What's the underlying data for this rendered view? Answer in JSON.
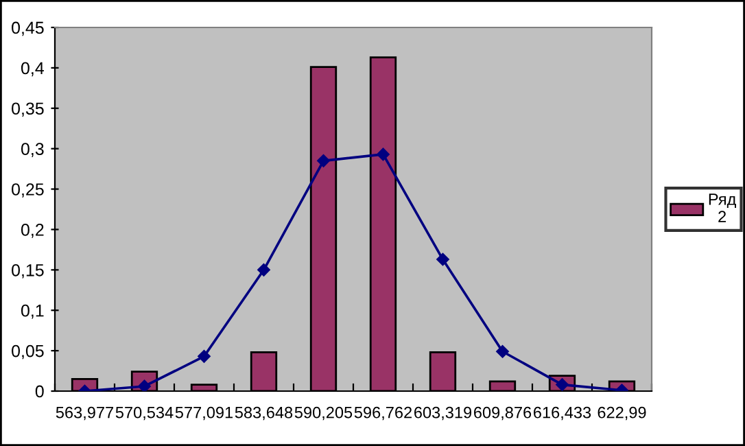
{
  "chart_data": {
    "type": "bar",
    "categories": [
      "563,977",
      "570,534",
      "577,091",
      "583,648",
      "590,205",
      "596,762",
      "603,319",
      "609,876",
      "616,433",
      "622,99"
    ],
    "series": [
      {
        "name": "Ряд 2",
        "color": "#993366",
        "values": [
          0.015,
          0.024,
          0.008,
          0.048,
          0.401,
          0.413,
          0.048,
          0.012,
          0.019,
          0.012
        ]
      },
      {
        "type": "line",
        "color": "#000080",
        "marker": "diamond",
        "values": [
          0.0,
          0.006,
          0.043,
          0.15,
          0.285,
          0.293,
          0.163,
          0.049,
          0.008,
          0.001
        ]
      }
    ],
    "ylim": [
      0,
      0.45
    ],
    "yticks": [
      0,
      {
        "value": 0.05,
        "label": "0,05"
      },
      {
        "value": 0.1,
        "label": "0,1"
      },
      {
        "value": 0.15,
        "label": "0,15"
      },
      {
        "value": 0.2,
        "label": "0,2"
      },
      {
        "value": 0.25,
        "label": "0,25"
      },
      {
        "value": 0.3,
        "label": "0,3"
      },
      {
        "value": 0.35,
        "label": "0,35"
      },
      {
        "value": 0.4,
        "label": "0,4"
      },
      {
        "value": 0.45,
        "label": "0,45"
      }
    ],
    "grid": false,
    "legend": "right"
  }
}
